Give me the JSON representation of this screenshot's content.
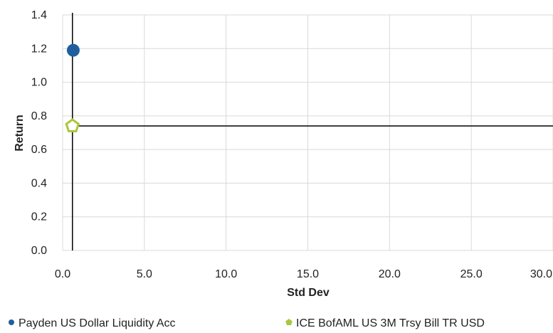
{
  "chart_data": {
    "type": "scatter",
    "title": "",
    "xlabel": "Std Dev",
    "ylabel": "Return",
    "xlim": [
      0.0,
      30.0
    ],
    "ylim": [
      0.0,
      1.4
    ],
    "x_ticks": [
      0.0,
      5.0,
      10.0,
      15.0,
      20.0,
      25.0,
      30.0
    ],
    "y_ticks": [
      0.0,
      0.2,
      0.4,
      0.6,
      0.8,
      1.0,
      1.2,
      1.4
    ],
    "x_tick_labels": [
      "0.0",
      "5.0",
      "10.0",
      "15.0",
      "20.0",
      "25.0",
      "30.0"
    ],
    "y_tick_labels": [
      "0.0",
      "0.2",
      "0.4",
      "0.6",
      "0.8",
      "1.0",
      "1.2",
      "1.4"
    ],
    "grid": true,
    "legend_position": "bottom",
    "crosshair": {
      "x": 0.6,
      "y": 0.74
    },
    "series": [
      {
        "name": "Payden US Dollar Liquidity Acc",
        "marker": "circle",
        "color": "#1f5f9f",
        "points": [
          {
            "x": 0.65,
            "y": 1.19
          }
        ]
      },
      {
        "name": "ICE BofAML US 3M Trsy Bill TR USD",
        "marker": "pentagon",
        "color": "#a8c83c",
        "points": [
          {
            "x": 0.6,
            "y": 0.74
          }
        ]
      }
    ]
  }
}
